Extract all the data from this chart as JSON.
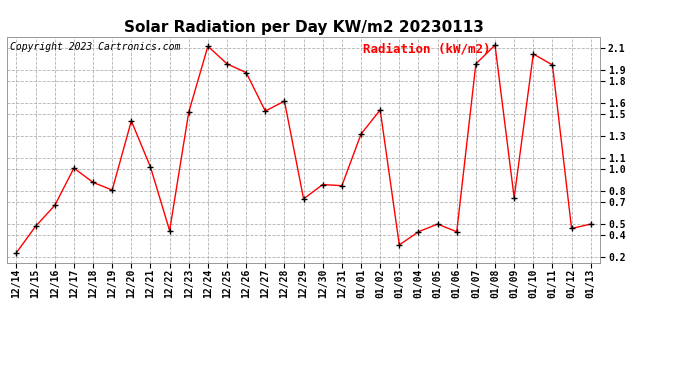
{
  "title": "Solar Radiation per Day KW/m2 20230113",
  "copyright": "Copyright 2023 Cartronics.com",
  "legend_label": "Radiation (kW/m2)",
  "dates": [
    "12/14",
    "12/15",
    "12/16",
    "12/17",
    "12/18",
    "12/19",
    "12/20",
    "12/21",
    "12/22",
    "12/23",
    "12/24",
    "12/25",
    "12/26",
    "12/27",
    "12/28",
    "12/29",
    "12/30",
    "12/31",
    "01/01",
    "01/02",
    "01/03",
    "01/04",
    "01/05",
    "01/06",
    "01/07",
    "01/08",
    "01/09",
    "01/10",
    "01/11",
    "01/12",
    "01/13"
  ],
  "values": [
    0.24,
    0.48,
    0.67,
    1.01,
    0.88,
    0.81,
    1.44,
    1.02,
    0.44,
    1.52,
    2.12,
    1.96,
    1.88,
    1.53,
    1.62,
    0.73,
    0.86,
    0.85,
    1.32,
    1.54,
    0.31,
    0.43,
    0.5,
    0.43,
    1.96,
    2.13,
    0.74,
    2.05,
    1.95,
    0.46,
    0.5
  ],
  "line_color": "red",
  "marker_color": "black",
  "marker": "+",
  "ylim": [
    0.15,
    2.2
  ],
  "yticks": [
    0.2,
    0.4,
    0.5,
    0.7,
    0.8,
    1.0,
    1.1,
    1.3,
    1.5,
    1.6,
    1.8,
    1.9,
    2.1
  ],
  "background_color": "#ffffff",
  "grid_color": "#aaaaaa",
  "title_fontsize": 11,
  "copyright_fontsize": 7,
  "legend_fontsize": 9,
  "tick_fontsize": 7
}
